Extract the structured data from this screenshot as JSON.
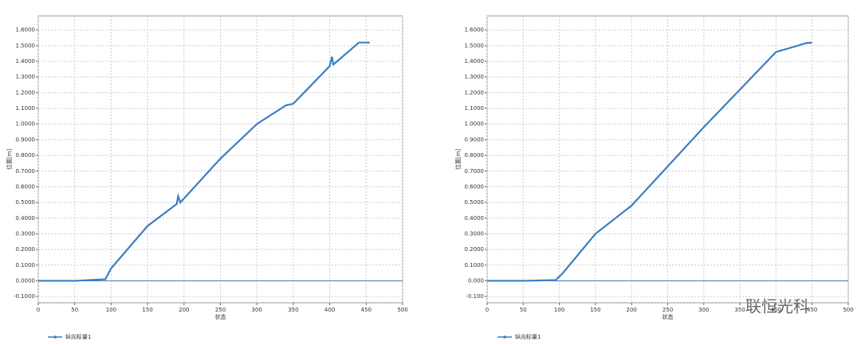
{
  "chart_data": [
    {
      "type": "line",
      "xlabel": "状态",
      "ylabel": "位置[m]",
      "x": [
        0,
        50,
        92,
        100,
        150,
        190,
        192,
        195,
        250,
        300,
        340,
        350,
        400,
        403,
        405,
        440,
        455
      ],
      "series": [
        {
          "name": "纵向标量1",
          "color": "#3a7fc1",
          "values": [
            0,
            0,
            0.01,
            0.08,
            0.35,
            0.49,
            0.54,
            0.5,
            0.78,
            1.0,
            1.12,
            1.13,
            1.37,
            1.43,
            1.38,
            1.52,
            1.52
          ]
        }
      ],
      "xlim": [
        0,
        500
      ],
      "xticks": [
        0,
        50,
        100,
        150,
        200,
        250,
        300,
        350,
        400,
        450,
        500
      ],
      "ylim": [
        -0.14,
        1.69
      ],
      "yticks": [
        {
          "value": -0.1,
          "label": "-0.1000"
        },
        {
          "value": 0,
          "label": "0.0000"
        },
        {
          "value": 0.1,
          "label": "0.1000"
        },
        {
          "value": 0.2,
          "label": "0.2000"
        },
        {
          "value": 0.3,
          "label": "0.3000"
        },
        {
          "value": 0.4,
          "label": "0.4000"
        },
        {
          "value": 0.5,
          "label": "0.5000"
        },
        {
          "value": 0.6,
          "label": "0.6000"
        },
        {
          "value": 0.7,
          "label": "0.7000"
        },
        {
          "value": 0.8,
          "label": "0.8000"
        },
        {
          "value": 0.9,
          "label": "0.9000"
        },
        {
          "value": 1,
          "label": "1.0000"
        },
        {
          "value": 1.1,
          "label": "1.1000"
        },
        {
          "value": 1.2,
          "label": "1.2000"
        },
        {
          "value": 1.3,
          "label": "1.3000"
        },
        {
          "value": 1.4,
          "label": "1.4000"
        },
        {
          "value": 1.5,
          "label": "1.5000"
        },
        {
          "value": 1.6,
          "label": "1.6000"
        }
      ],
      "grid": true
    },
    {
      "type": "line",
      "xlabel": "状态",
      "ylabel": "位置[m]",
      "x": [
        0,
        50,
        95,
        105,
        150,
        200,
        250,
        300,
        350,
        400,
        430,
        440,
        450
      ],
      "series": [
        {
          "name": "纵向标量1",
          "color": "#3a7fc1",
          "values": [
            0,
            0,
            0.005,
            0.05,
            0.3,
            0.48,
            0.73,
            0.98,
            1.22,
            1.46,
            1.5,
            1.515,
            1.52
          ]
        }
      ],
      "xlim": [
        0,
        500
      ],
      "xticks": [
        0,
        50,
        100,
        150,
        200,
        250,
        300,
        350,
        400,
        450,
        500
      ],
      "ylim": [
        -0.14,
        1.69
      ],
      "yticks": [
        {
          "value": -0.1,
          "label": "-0.100"
        },
        {
          "value": 0,
          "label": "0.000"
        },
        {
          "value": 0.1,
          "label": "0.1000"
        },
        {
          "value": 0.2,
          "label": "0.2000"
        },
        {
          "value": 0.3,
          "label": "0.3000"
        },
        {
          "value": 0.4,
          "label": "0.4000"
        },
        {
          "value": 0.5,
          "label": "0.5000"
        },
        {
          "value": 0.6,
          "label": "0.6000"
        },
        {
          "value": 0.7,
          "label": "0.7000"
        },
        {
          "value": 0.8,
          "label": "0.8000"
        },
        {
          "value": 0.9,
          "label": "0.9000"
        },
        {
          "value": 1,
          "label": "1.0000"
        },
        {
          "value": 1.1,
          "label": "1.1000"
        },
        {
          "value": 1.2,
          "label": "1.2000"
        },
        {
          "value": 1.3,
          "label": "1.3000"
        },
        {
          "value": 1.4,
          "label": "1.4000"
        },
        {
          "value": 1.5,
          "label": "1.5000"
        },
        {
          "value": 1.6,
          "label": "1.6000"
        }
      ],
      "grid": true
    }
  ],
  "watermark": "联恒光科"
}
